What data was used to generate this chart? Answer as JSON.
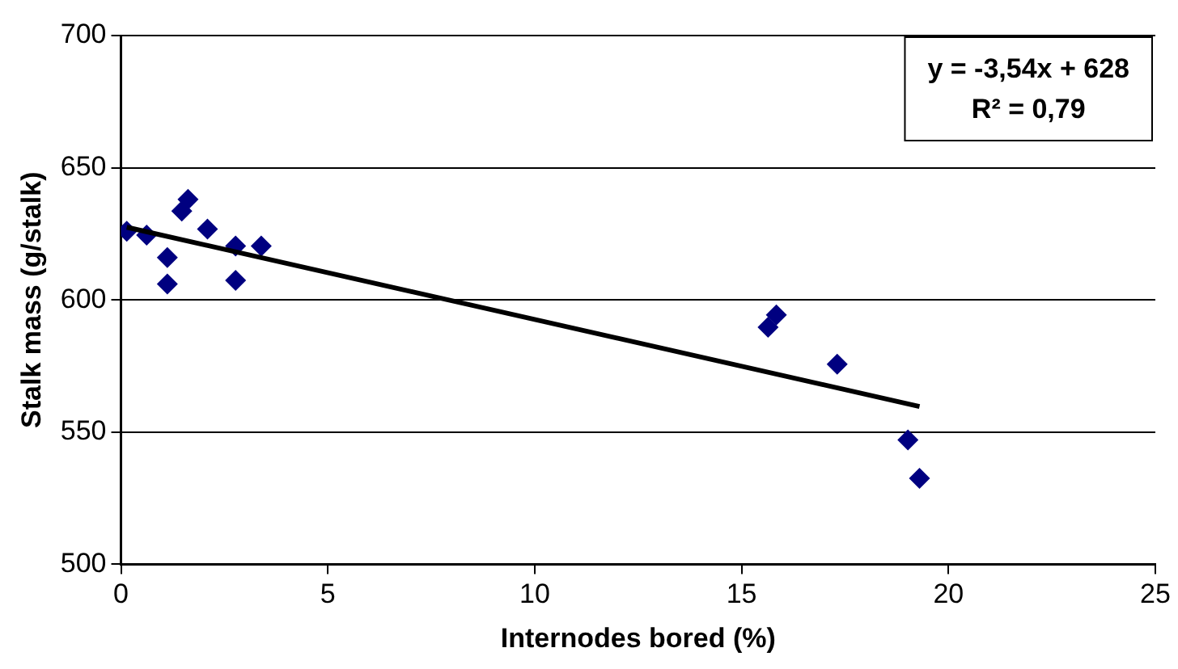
{
  "chart_data": {
    "type": "scatter",
    "xlabel": "Internodes bored (%)",
    "ylabel": "Stalk mass (g/stalk)",
    "xlim": [
      0,
      25
    ],
    "xticks": [
      0,
      5,
      10,
      15,
      20,
      25
    ],
    "ylim": [
      500,
      700
    ],
    "yticks": [
      500,
      550,
      600,
      650,
      700
    ],
    "grid": "y",
    "legend": false,
    "marker": "diamond",
    "annotations": [
      "y = -3,54x + 628",
      "R² = 0,79"
    ],
    "series": [
      {
        "color": "#000080",
        "x": [
          0.14,
          0.62,
          1.12,
          1.12,
          1.47,
          1.62,
          2.09,
          2.77,
          2.77,
          3.39,
          15.64,
          15.84,
          17.31,
          19.02,
          19.3
        ],
        "values": [
          626,
          624.5,
          616,
          606,
          633.6,
          638,
          626.8,
          620.4,
          607.4,
          620.4,
          589.7,
          594.3,
          575.7,
          547,
          532.5
        ]
      },
      {
        "type": "line",
        "color": "#000000",
        "marker": "none",
        "x": [
          0.14,
          19.3
        ],
        "values": [
          627.5,
          559.7
        ]
      }
    ]
  }
}
